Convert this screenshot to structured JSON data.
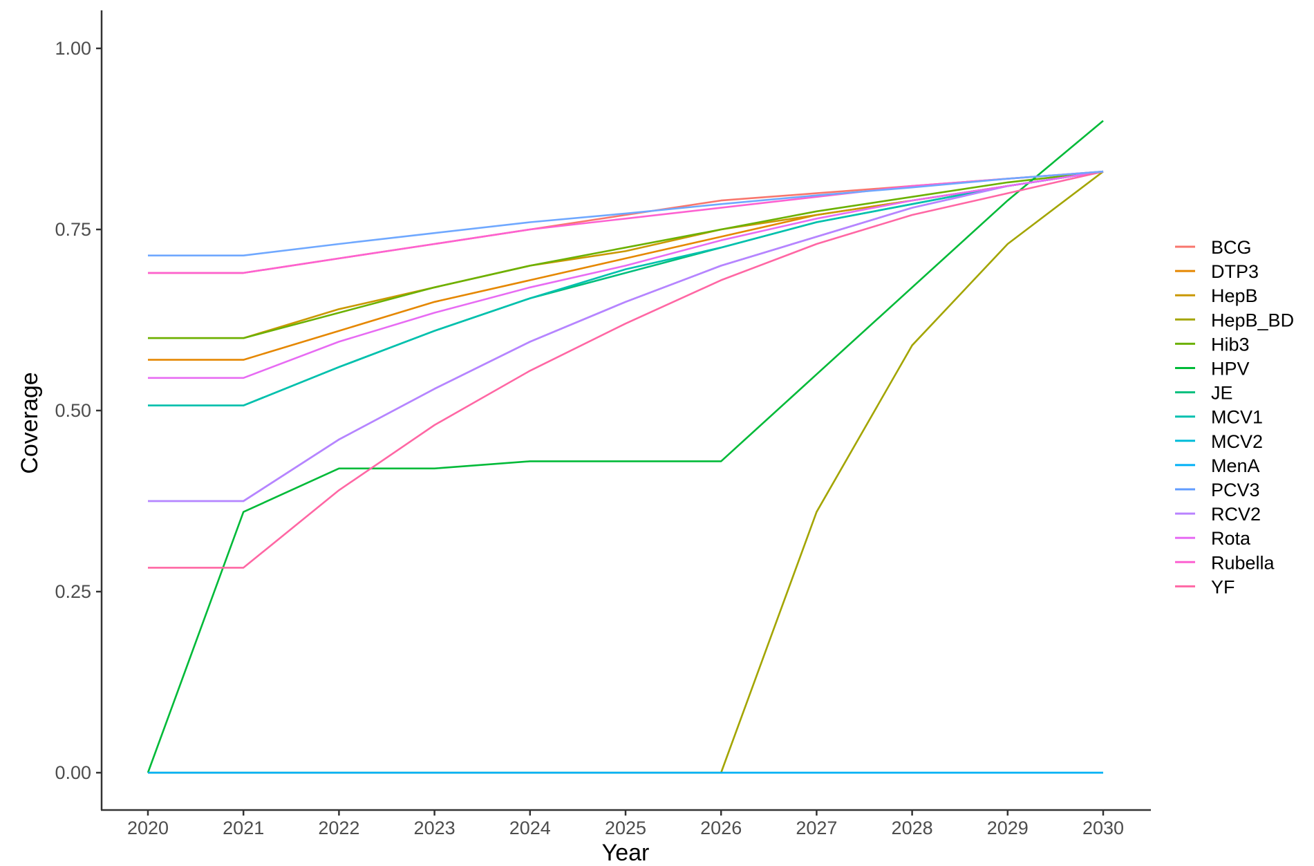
{
  "chart_data": {
    "type": "line",
    "title": "",
    "xlabel": "Year",
    "ylabel": "Coverage",
    "x": [
      2020,
      2021,
      2022,
      2023,
      2024,
      2025,
      2026,
      2027,
      2028,
      2029,
      2030
    ],
    "x_ticks": [
      "2020",
      "2021",
      "2022",
      "2023",
      "2024",
      "2025",
      "2026",
      "2027",
      "2028",
      "2029",
      "2030"
    ],
    "y_ticks": [
      "0.00",
      "0.25",
      "0.50",
      "0.75",
      "1.00"
    ],
    "y_tick_values": [
      0,
      0.25,
      0.5,
      0.75,
      1.0
    ],
    "xlim": [
      2020,
      2030
    ],
    "ylim": [
      0,
      1.0
    ],
    "grid": false,
    "legend_position": "right",
    "series": [
      {
        "name": "BCG",
        "color": "#F8766D",
        "values": [
          0.69,
          0.69,
          0.71,
          0.73,
          0.75,
          0.77,
          0.79,
          0.8,
          0.81,
          0.82,
          0.83
        ]
      },
      {
        "name": "DTP3",
        "color": "#E58700",
        "values": [
          0.57,
          0.57,
          0.61,
          0.65,
          0.68,
          0.71,
          0.74,
          0.77,
          0.79,
          0.81,
          0.83
        ]
      },
      {
        "name": "HepB",
        "color": "#C99800",
        "values": [
          0.6,
          0.6,
          0.64,
          0.67,
          0.7,
          0.72,
          0.75,
          0.77,
          0.79,
          0.81,
          0.83
        ]
      },
      {
        "name": "HepB_BD",
        "color": "#A3A500",
        "values": [
          0,
          0,
          0,
          0,
          0,
          0,
          0,
          0.36,
          0.59,
          0.73,
          0.83
        ]
      },
      {
        "name": "Hib3",
        "color": "#6BB100",
        "values": [
          0.6,
          0.6,
          0.635,
          0.67,
          0.7,
          0.725,
          0.75,
          0.775,
          0.795,
          0.815,
          0.83
        ]
      },
      {
        "name": "HPV",
        "color": "#00BA38",
        "values": [
          0,
          0.36,
          0.42,
          0.42,
          0.43,
          0.43,
          0.43,
          0.55,
          0.67,
          0.79,
          0.9
        ]
      },
      {
        "name": "JE",
        "color": "#00BF7D",
        "values": [
          0.507,
          0.507,
          0.56,
          0.61,
          0.655,
          0.69,
          0.725,
          0.76,
          0.785,
          0.81,
          0.83
        ]
      },
      {
        "name": "MCV1",
        "color": "#00C0AF",
        "values": [
          0.507,
          0.507,
          0.56,
          0.61,
          0.655,
          0.695,
          0.725,
          0.76,
          0.785,
          0.81,
          0.83
        ]
      },
      {
        "name": "MCV2",
        "color": "#00BCD8",
        "values": [
          0,
          0,
          0,
          0,
          0,
          0,
          0,
          0,
          0,
          0,
          0
        ]
      },
      {
        "name": "MenA",
        "color": "#00B0F6",
        "values": [
          0,
          0,
          0,
          0,
          0,
          0,
          0,
          0,
          0,
          0,
          0
        ]
      },
      {
        "name": "PCV3",
        "color": "#619CFF",
        "values": [
          0.375,
          0.375,
          0.46,
          0.53,
          0.595,
          0.65,
          0.7,
          0.74,
          0.78,
          0.81,
          0.83
        ]
      },
      {
        "name": "RCV2",
        "color": "#B983FF",
        "values": [
          0.375,
          0.375,
          0.46,
          0.53,
          0.595,
          0.65,
          0.7,
          0.74,
          0.78,
          0.81,
          0.83
        ]
      },
      {
        "name": "Rota",
        "color": "#E76BF3",
        "values": [
          0.545,
          0.545,
          0.595,
          0.635,
          0.67,
          0.7,
          0.735,
          0.765,
          0.79,
          0.81,
          0.83
        ]
      },
      {
        "name": "Rubella",
        "color": "#FD61D1",
        "values": [
          0.69,
          0.69,
          0.71,
          0.73,
          0.75,
          0.765,
          0.78,
          0.795,
          0.81,
          0.82,
          0.83
        ]
      },
      {
        "name": "YF",
        "color": "#FF67A4",
        "values": [
          0.283,
          0.283,
          0.39,
          0.48,
          0.555,
          0.62,
          0.68,
          0.73,
          0.77,
          0.8,
          0.83
        ]
      },
      {
        "name": "",
        "color": "#6FA8FF",
        "values": [
          0.714,
          0.714,
          0.73,
          0.745,
          0.76,
          0.772,
          0.785,
          0.797,
          0.808,
          0.82,
          0.83
        ]
      }
    ],
    "legend_entries": [
      "BCG",
      "DTP3",
      "HepB",
      "HepB_BD",
      "Hib3",
      "HPV",
      "JE",
      "MCV1",
      "MCV2",
      "MenA",
      "PCV3",
      "RCV2",
      "Rota",
      "Rubella",
      "YF"
    ]
  }
}
